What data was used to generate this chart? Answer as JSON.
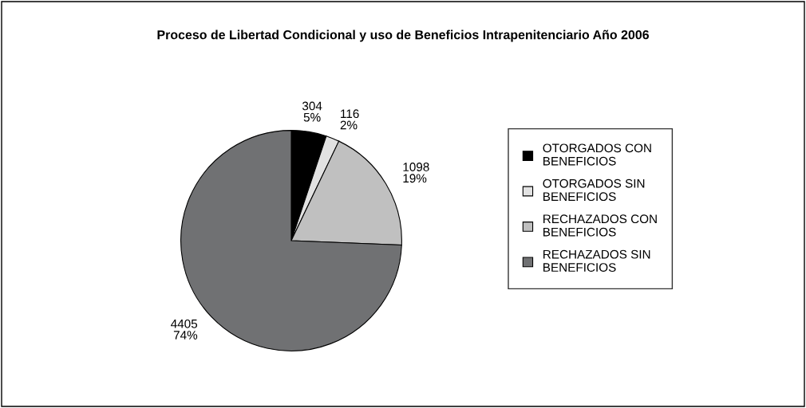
{
  "chart_data": {
    "type": "pie",
    "title": "Proceso de Libertad Condicional y uso de Beneficios Intrapenitenciario Año 2006",
    "categories": [
      "OTORGADOS CON BENEFICIOS",
      "OTORGADOS SIN BENEFICIOS",
      "RECHAZADOS CON BENEFICIOS",
      "RECHAZADOS SIN BENEFICIOS"
    ],
    "values": [
      304,
      116,
      1098,
      4405
    ],
    "colors": [
      "#000000",
      "#e2e2e2",
      "#c0c0c0",
      "#707173"
    ],
    "value_labels": [
      "304\n5%",
      "116\n2%",
      "1098\n19%",
      "4405\n74%"
    ],
    "legend": "right"
  }
}
